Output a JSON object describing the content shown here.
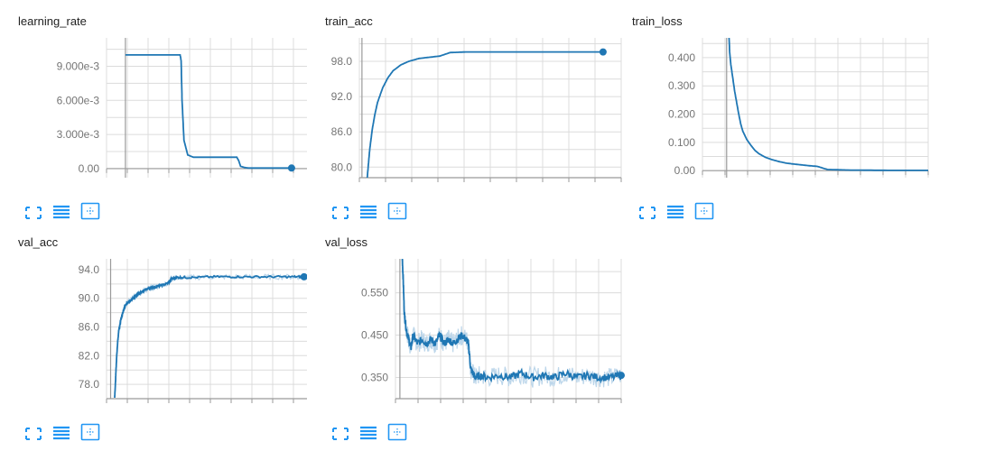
{
  "colors": {
    "line": "#1f77b4",
    "raw": "#bcd6ea",
    "grid": "#dcdcdc",
    "axis": "#9a9a9a",
    "tick": "#757575",
    "icon": "#2196f3"
  },
  "icons": {
    "expand": "expand-icon",
    "data": "toggle-data-icon",
    "fit": "fit-domain-icon"
  },
  "chart_data": [
    {
      "type": "line",
      "title": "learning_rate",
      "ylim": [
        -0.0008,
        0.0115
      ],
      "xlim": [
        -0.1,
        1.0
      ],
      "yticks": [
        0,
        0.003,
        0.006,
        0.009
      ],
      "ytick_labels": [
        "0.00",
        "3.000e-3",
        "6.000e-3",
        "9.000e-3"
      ],
      "grid": true,
      "series": [
        {
          "x": [
            0,
            0.29,
            0.295,
            0.3,
            0.31,
            0.33,
            0.36,
            0.59,
            0.6,
            0.61,
            0.63,
            0.65,
            0.88
          ],
          "y": [
            0.01,
            0.01,
            0.0095,
            0.006,
            0.0025,
            0.0012,
            0.001,
            0.001,
            0.0007,
            0.0002,
            0.0001,
            5e-05,
            5e-05
          ]
        }
      ],
      "endpoint": true
    },
    {
      "type": "line",
      "title": "train_acc",
      "ylim": [
        78.2,
        102
      ],
      "xlim": [
        -0.01,
        1.0
      ],
      "yticks": [
        80,
        86,
        92,
        98
      ],
      "ytick_labels": [
        "80.0",
        "86.0",
        "92.0",
        "98.0"
      ],
      "grid": true,
      "series": [
        {
          "x": [
            0.02,
            0.025,
            0.03,
            0.04,
            0.05,
            0.06,
            0.08,
            0.1,
            0.12,
            0.15,
            0.18,
            0.22,
            0.26,
            0.3,
            0.34,
            0.4,
            0.5,
            0.6,
            0.7,
            0.8,
            0.9,
            0.93
          ],
          "y": [
            78.0,
            80.5,
            83.0,
            86.5,
            89.0,
            91.0,
            93.5,
            95.2,
            96.4,
            97.4,
            98.0,
            98.5,
            98.7,
            98.9,
            99.5,
            99.6,
            99.6,
            99.6,
            99.6,
            99.6,
            99.6,
            99.6
          ]
        }
      ],
      "endpoint": true
    },
    {
      "type": "line",
      "title": "train_loss",
      "ylim": [
        -0.025,
        0.47
      ],
      "xlim": [
        -0.12,
        1.0
      ],
      "yticks": [
        0,
        0.1,
        0.2,
        0.3,
        0.4
      ],
      "ytick_labels": [
        "0.00",
        "0.100",
        "0.200",
        "0.300",
        "0.400"
      ],
      "grid": true,
      "series": [
        {
          "x": [
            0.01,
            0.015,
            0.02,
            0.03,
            0.04,
            0.05,
            0.06,
            0.07,
            0.08,
            0.1,
            0.12,
            0.14,
            0.16,
            0.19,
            0.22,
            0.26,
            0.3,
            0.35,
            0.4,
            0.45,
            0.5,
            0.6,
            0.8,
            1.0
          ],
          "y": [
            0.5,
            0.42,
            0.38,
            0.33,
            0.28,
            0.24,
            0.2,
            0.165,
            0.14,
            0.11,
            0.09,
            0.072,
            0.06,
            0.048,
            0.04,
            0.032,
            0.026,
            0.022,
            0.018,
            0.015,
            0.004,
            0.002,
            0.001,
            0.001
          ]
        }
      ],
      "endpoint": false
    },
    {
      "type": "line",
      "title": "val_acc",
      "ylim": [
        76,
        95.5
      ],
      "xlim": [
        -0.02,
        1.0
      ],
      "yticks": [
        78,
        82,
        86,
        90,
        94
      ],
      "ytick_labels": [
        "78.0",
        "82.0",
        "86.0",
        "90.0",
        "94.0"
      ],
      "grid": true,
      "series": [
        {
          "x": [
            0.02,
            0.025,
            0.03,
            0.035,
            0.04,
            0.05,
            0.06,
            0.07,
            0.08,
            0.1,
            0.12,
            0.14,
            0.16,
            0.18,
            0.2,
            0.22,
            0.25,
            0.28,
            0.3,
            0.32,
            0.35,
            0.4,
            0.5,
            0.6,
            0.7,
            0.8,
            0.9,
            0.95
          ],
          "y": [
            76.2,
            79.0,
            82.0,
            84.0,
            85.5,
            87.0,
            88.0,
            88.8,
            89.3,
            89.8,
            90.2,
            90.7,
            91.0,
            91.3,
            91.5,
            91.6,
            91.8,
            92.1,
            92.7,
            92.9,
            92.9,
            92.9,
            93.0,
            93.0,
            93.0,
            93.0,
            93.0,
            93.0
          ]
        }
      ],
      "endpoint": true
    },
    {
      "type": "line",
      "title": "val_loss",
      "ylim": [
        0.3,
        0.63
      ],
      "xlim": [
        -0.02,
        1.0
      ],
      "yticks": [
        0.35,
        0.45,
        0.55
      ],
      "ytick_labels": [
        "0.350",
        "0.450",
        "0.550"
      ],
      "grid": true,
      "series": [
        {
          "x": [
            0.01,
            0.015,
            0.02,
            0.03,
            0.04,
            0.05,
            0.06,
            0.08,
            0.1,
            0.12,
            0.14,
            0.16,
            0.18,
            0.2,
            0.22,
            0.24,
            0.26,
            0.28,
            0.3,
            0.31,
            0.32,
            0.33,
            0.34,
            0.36,
            0.4,
            0.45,
            0.5,
            0.55,
            0.6,
            0.65,
            0.7,
            0.75,
            0.8,
            0.85,
            0.9,
            0.95,
            1.0
          ],
          "y": [
            0.64,
            0.58,
            0.5,
            0.46,
            0.44,
            0.42,
            0.45,
            0.43,
            0.44,
            0.43,
            0.44,
            0.43,
            0.45,
            0.43,
            0.44,
            0.43,
            0.44,
            0.45,
            0.44,
            0.43,
            0.37,
            0.36,
            0.35,
            0.355,
            0.35,
            0.355,
            0.35,
            0.36,
            0.35,
            0.355,
            0.35,
            0.36,
            0.35,
            0.355,
            0.35,
            0.35,
            0.355
          ]
        }
      ],
      "endpoint": true
    }
  ]
}
